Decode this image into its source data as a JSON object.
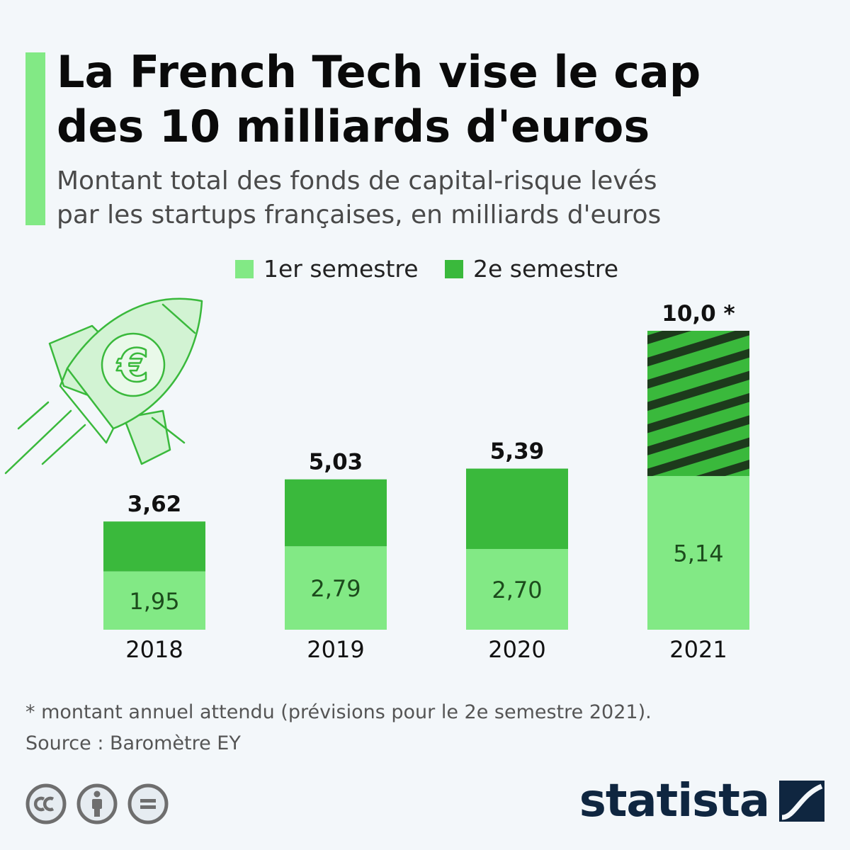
{
  "header": {
    "title_line1": "La French Tech vise le cap",
    "title_line2": "des 10 milliards d'euros",
    "subtitle_line1": "Montant total des fonds de capital-risque levés",
    "subtitle_line2": "par les startups françaises, en milliards d'euros"
  },
  "legend": {
    "first": "1er semestre",
    "second": "2e semestre"
  },
  "colors": {
    "accent": "#82e985",
    "first_half": "#82e985",
    "second_half": "#3ab93c",
    "hatch": "#1d3a1c",
    "brand": "#0f2640"
  },
  "chart_data": {
    "type": "bar",
    "stacked": true,
    "categories": [
      "2018",
      "2019",
      "2020",
      "2021"
    ],
    "series": [
      {
        "name": "1er semestre",
        "values": [
          1.95,
          2.79,
          2.7,
          5.14
        ]
      },
      {
        "name": "2e semestre",
        "values": [
          1.67,
          2.24,
          2.69,
          4.86
        ]
      }
    ],
    "first_half_labels": [
      "1,95",
      "2,79",
      "2,70",
      "5,14"
    ],
    "total_labels": [
      "3,62",
      "5,03",
      "5,39",
      "10,0 *"
    ],
    "totals": [
      3.62,
      5.03,
      5.39,
      10.0
    ],
    "projected_second_half": [
      false,
      false,
      false,
      true
    ],
    "ylim": [
      0,
      10
    ],
    "grid": false,
    "legend_position": "top-center"
  },
  "footer": {
    "footnote": "* montant annuel attendu (prévisions pour le 2e semestre 2021).",
    "source": "Source : Baromètre EY",
    "brand": "statista"
  },
  "icons": {
    "illustration": "rocket-euro-icon",
    "license": [
      "cc-icon",
      "attribution-icon",
      "no-derivatives-icon"
    ],
    "brand_mark": "statista-logo-icon"
  }
}
